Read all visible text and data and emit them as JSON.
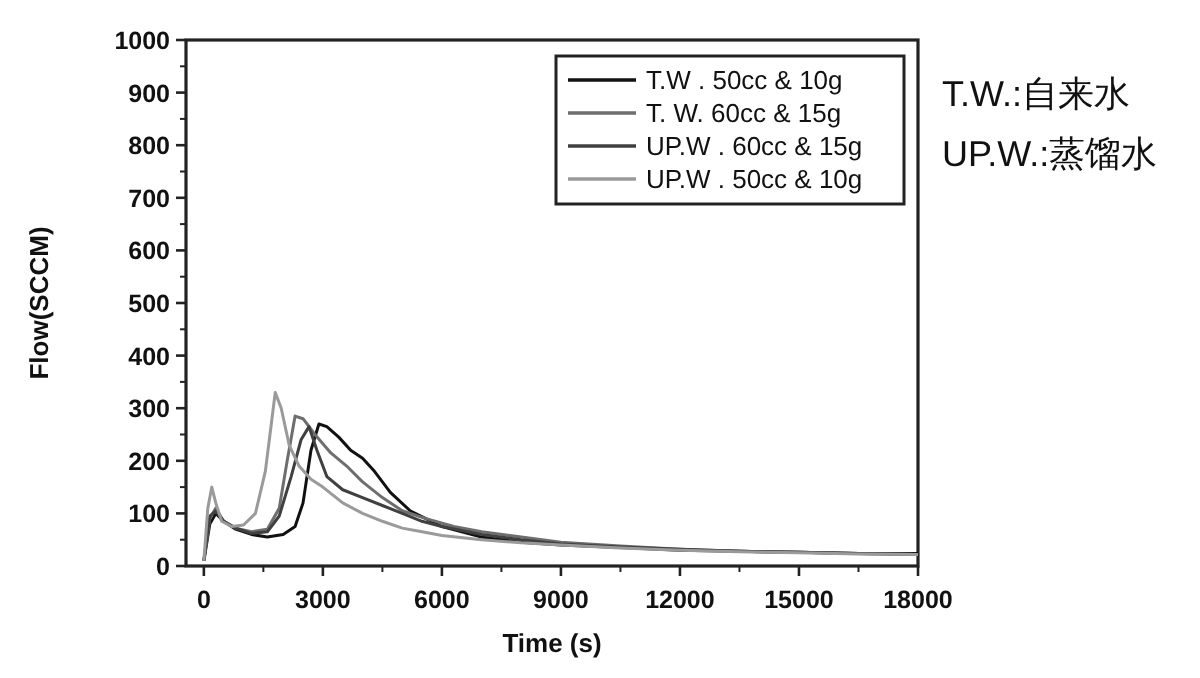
{
  "chart_data": {
    "type": "line",
    "xlabel": "Time (s)",
    "ylabel": "Flow(SCCM)",
    "xlim": [
      -450,
      18000
    ],
    "xticks": [
      0,
      3000,
      6000,
      9000,
      12000,
      15000,
      18000
    ],
    "ylim": [
      0,
      1000
    ],
    "yticks": [
      0,
      100,
      200,
      300,
      400,
      500,
      600,
      700,
      800,
      900,
      1000
    ],
    "legend": "top right",
    "marker": "none",
    "line_style": "solid",
    "annotations": [
      "T.W.:自来水",
      "UP.W.:蒸馏水"
    ],
    "series": [
      {
        "name": "T.W . 50cc & 10g",
        "color": "#111111",
        "x": [
          0,
          150,
          300,
          500,
          800,
          1200,
          1600,
          2000,
          2300,
          2500,
          2700,
          2900,
          3100,
          3400,
          3700,
          4000,
          4300,
          4700,
          5200,
          6000,
          7000,
          8000,
          9000,
          10500,
          12000,
          13500,
          15000,
          16500,
          18000
        ],
        "values": [
          10,
          80,
          100,
          85,
          70,
          60,
          55,
          60,
          75,
          120,
          220,
          270,
          265,
          245,
          220,
          205,
          180,
          140,
          105,
          75,
          55,
          45,
          40,
          35,
          30,
          28,
          26,
          24,
          24
        ]
      },
      {
        "name": "T. W. 60cc & 15g",
        "color": "#6e6e6e",
        "x": [
          0,
          150,
          300,
          500,
          800,
          1200,
          1600,
          1900,
          2100,
          2300,
          2500,
          2800,
          3200,
          3600,
          4000,
          4500,
          5000,
          5600,
          6300,
          7000,
          8000,
          9000,
          10500,
          12000,
          13500,
          15000,
          16500,
          18000
        ],
        "values": [
          10,
          90,
          110,
          85,
          72,
          65,
          70,
          110,
          200,
          285,
          280,
          250,
          215,
          190,
          160,
          130,
          105,
          90,
          75,
          65,
          55,
          45,
          38,
          32,
          28,
          26,
          24,
          22
        ]
      },
      {
        "name": "UP.W . 60cc & 15g",
        "color": "#404040",
        "x": [
          0,
          150,
          300,
          500,
          800,
          1200,
          1600,
          1900,
          2200,
          2450,
          2650,
          2850,
          3100,
          3500,
          4000,
          4500,
          5000,
          5500,
          6000,
          7000,
          8000,
          9000,
          10500,
          12000,
          13500,
          15000,
          16500,
          18000
        ],
        "values": [
          10,
          95,
          105,
          85,
          72,
          62,
          65,
          95,
          170,
          240,
          265,
          220,
          170,
          145,
          130,
          115,
          100,
          85,
          75,
          60,
          50,
          42,
          36,
          32,
          28,
          26,
          24,
          22
        ]
      },
      {
        "name": "UP.W . 50cc & 10g",
        "color": "#9a9a9a",
        "x": [
          0,
          100,
          200,
          300,
          450,
          700,
          1000,
          1300,
          1550,
          1700,
          1800,
          1950,
          2150,
          2400,
          2700,
          3000,
          3500,
          4000,
          4500,
          5000,
          5500,
          6000,
          7000,
          8000,
          9000,
          10500,
          12000,
          13500,
          15000,
          16500,
          18000
        ],
        "values": [
          10,
          110,
          150,
          120,
          85,
          75,
          78,
          100,
          180,
          270,
          330,
          300,
          230,
          190,
          165,
          150,
          120,
          100,
          85,
          72,
          65,
          58,
          50,
          44,
          40,
          34,
          30,
          27,
          25,
          23,
          22
        ]
      }
    ]
  }
}
